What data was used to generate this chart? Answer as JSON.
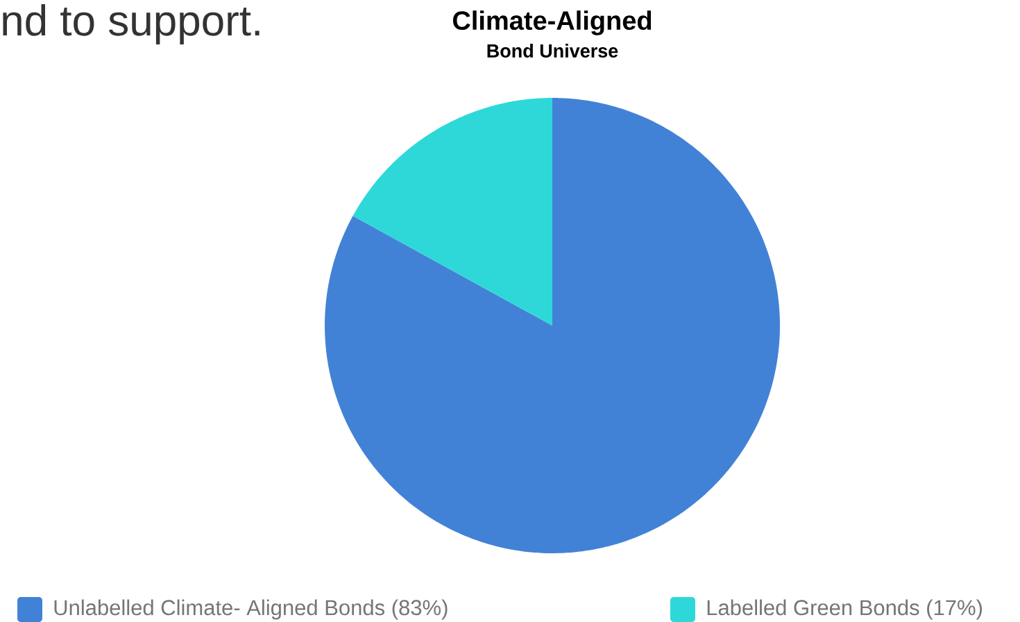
{
  "chart_data": {
    "type": "pie",
    "title": "Climate-Aligned",
    "subtitle": "Bond Universe",
    "categories": [
      "Unlabelled Climate- Aligned Bonds (83%)",
      "Labelled Green Bonds (17%)"
    ],
    "values": [
      83,
      17
    ],
    "colors": [
      "#4282d6",
      "#2ed8d8"
    ],
    "legend": "bottom",
    "annotations": [
      "nd to support."
    ]
  }
}
